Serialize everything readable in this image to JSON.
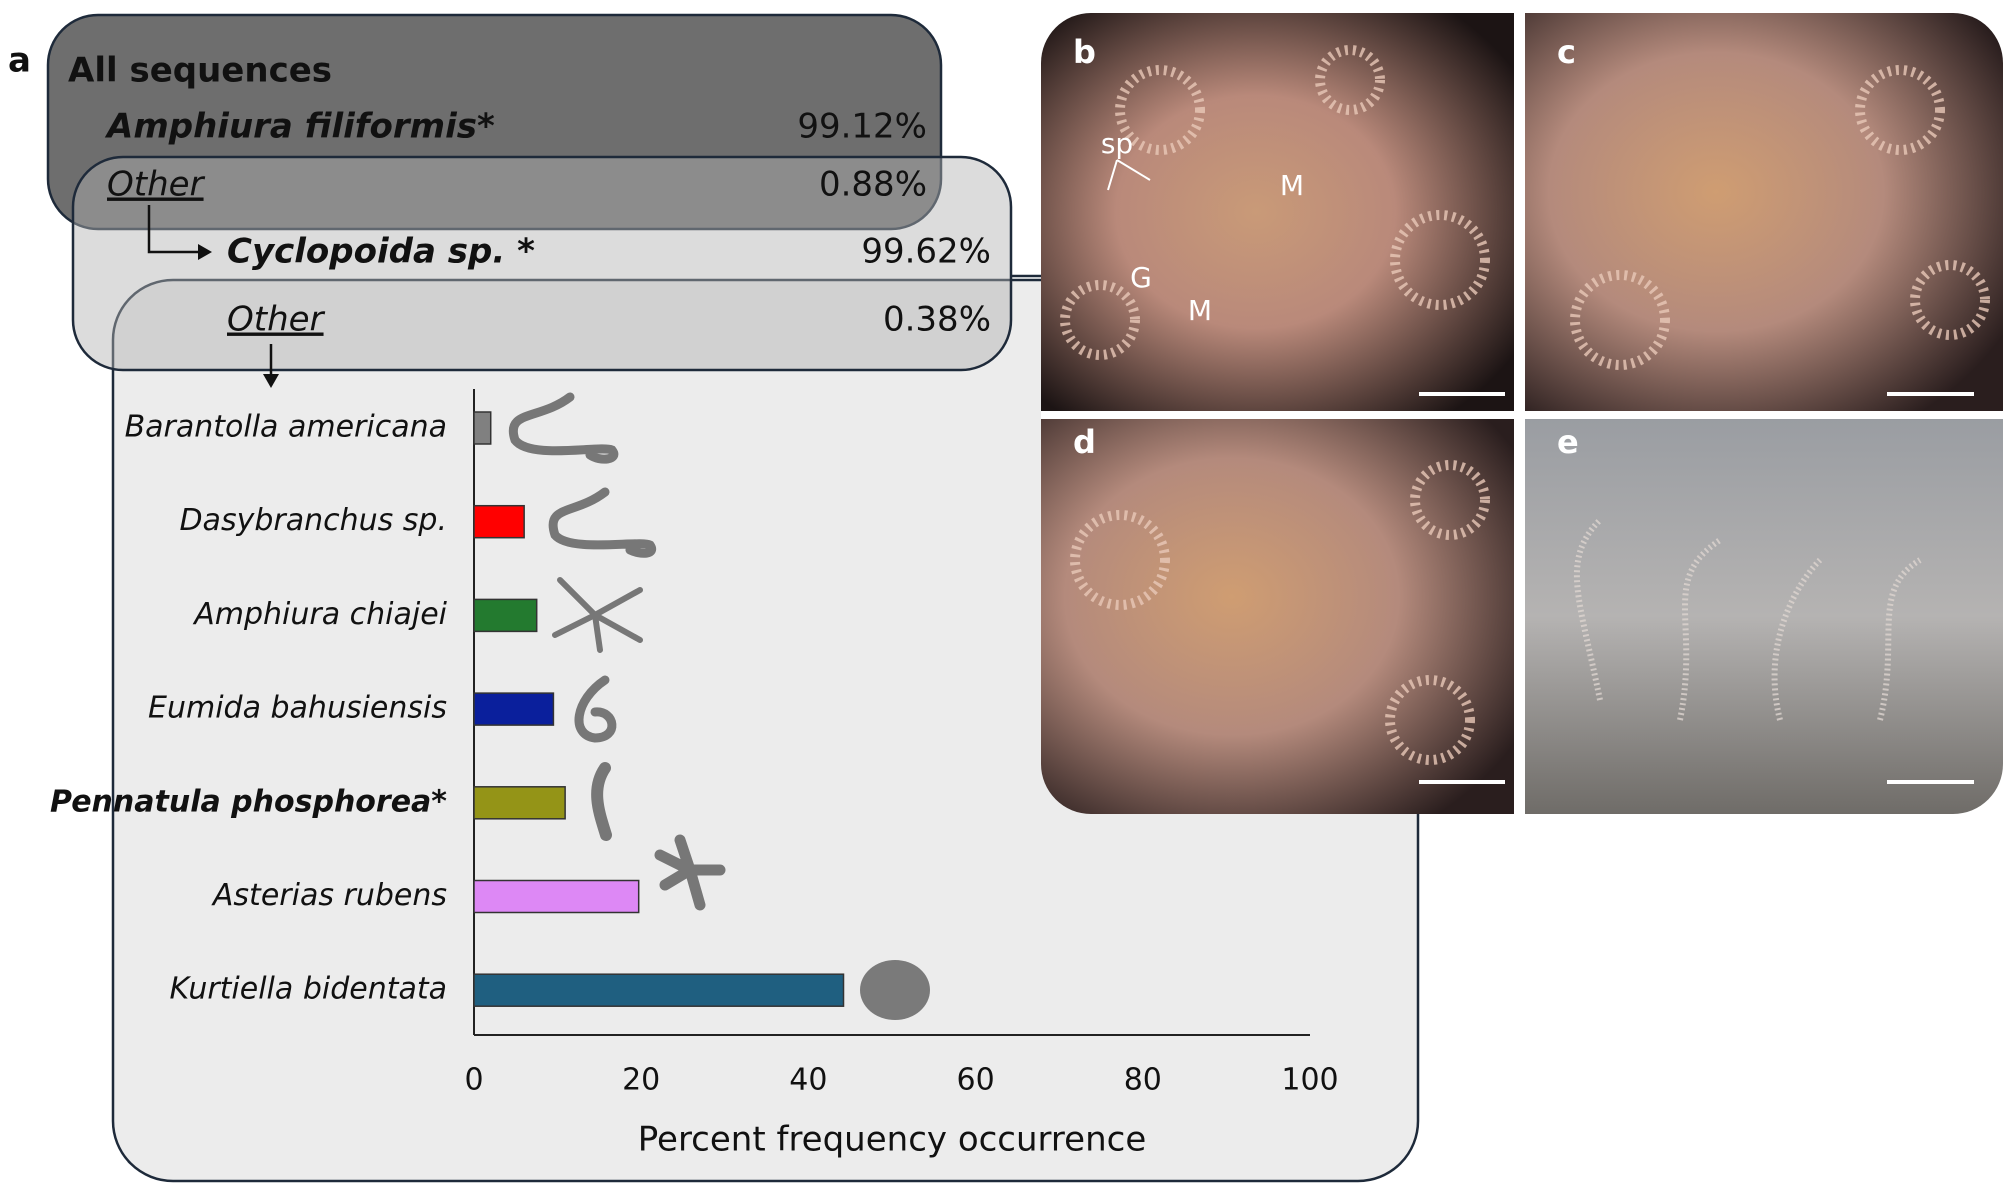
{
  "panel_a": {
    "label": "a",
    "title": "All sequences",
    "rows": [
      {
        "name": "Amphiura filiformis*",
        "value": "99.12%"
      },
      {
        "name": "Other",
        "value": "0.88%"
      }
    ],
    "sub_rows": [
      {
        "name": "Cyclopoida sp. *",
        "value": "99.62%"
      },
      {
        "name": "Other",
        "value": "0.38%"
      }
    ]
  },
  "chart_data": {
    "type": "bar",
    "orientation": "horizontal",
    "categories": [
      "Barantolla americana",
      "Dasybranchus sp.",
      "Amphiura chiajei",
      "Eumida bahusiensis",
      "Pennatula phosphorea*",
      "Asterias rubens",
      "Kurtiella bidentata"
    ],
    "values": [
      2.0,
      6.0,
      7.5,
      9.5,
      10.9,
      19.7,
      44.2
    ],
    "colors": [
      "#808080",
      "#ff0000",
      "#237a2f",
      "#0a1f9c",
      "#949417",
      "#dd88f5",
      "#1f5f80"
    ],
    "xlim": [
      0,
      100
    ],
    "xticks": [
      0,
      20,
      40,
      60,
      80,
      100
    ],
    "x_label": "Percent frequency occurrence",
    "grid": false
  },
  "photos": [
    {
      "label": "b",
      "annotations": [
        "sp",
        "G",
        "M",
        "M"
      ]
    },
    {
      "label": "c"
    },
    {
      "label": "d"
    },
    {
      "label": "e"
    }
  ]
}
